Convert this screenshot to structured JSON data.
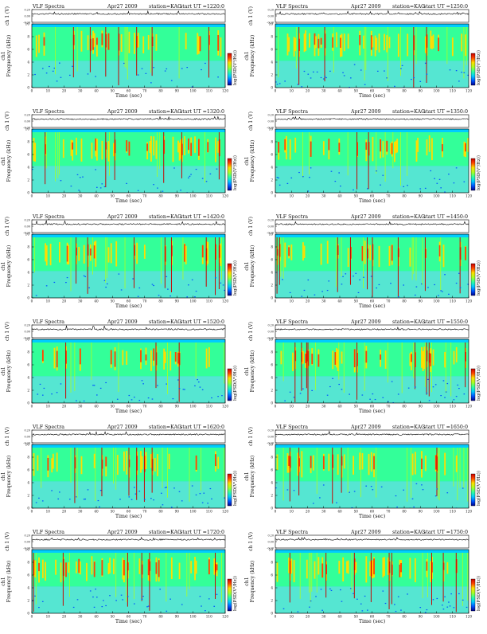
{
  "page": {
    "panel_title_left": "VLF Spectra",
    "date": "Apr27 2009",
    "station": "station=KAG",
    "ut_prefix": "start  UT  =",
    "ch_label": "ch 1 (V)",
    "freq_label": "Frequency (kHz)",
    "ch_rotated_label": "ch1",
    "time_label": "Time (sec)",
    "colorbar_label": "log(PSD(V²/Hz))",
    "colorbar_top_tick": "",
    "colorbar_bottom_tick": "-"
  },
  "chart_data": [
    {
      "type": "heatmap",
      "start_ut": "1220:0",
      "xlabel": "Time (sec)",
      "ylabel": "Frequency (kHz)",
      "xlim": [
        0,
        120
      ],
      "ylim": [
        0,
        10
      ],
      "xticks": [
        "0",
        "10",
        "20",
        "30",
        "40",
        "50",
        "60",
        "70",
        "80",
        "90",
        "100",
        "110",
        "120"
      ],
      "yticks": [
        "0",
        "2",
        "4",
        "6",
        "8",
        "10"
      ],
      "ch_ylim": [
        -0.2,
        0.2
      ],
      "ch_yticks": [
        "0.20",
        "0.00",
        "-0.20"
      ],
      "colormap": [
        "#00008b",
        "#0055ff",
        "#00ccff",
        "#33ff99",
        "#aaff22",
        "#ffdd00",
        "#ff4400",
        "#c80000"
      ],
      "band_upper_edge_khz": 9.5
    },
    {
      "type": "heatmap",
      "start_ut": "1250:0",
      "xlabel": "Time (sec)",
      "ylabel": "Frequency (kHz)",
      "xlim": [
        0,
        120
      ],
      "ylim": [
        0,
        10
      ],
      "xticks": [
        "0",
        "10",
        "20",
        "30",
        "40",
        "50",
        "60",
        "70",
        "80",
        "90",
        "100",
        "110",
        "120"
      ],
      "yticks": [
        "0",
        "2",
        "4",
        "6",
        "8",
        "10"
      ],
      "ch_ylim": [
        -0.2,
        0.2
      ],
      "ch_yticks": [
        "0.20",
        "0.00",
        "-0.20"
      ],
      "colormap": [
        "#00008b",
        "#0055ff",
        "#00ccff",
        "#33ff99",
        "#aaff22",
        "#ffdd00",
        "#ff4400",
        "#c80000"
      ],
      "band_upper_edge_khz": 9.5
    },
    {
      "type": "heatmap",
      "start_ut": "1320:0",
      "xlabel": "Time (sec)",
      "ylabel": "Frequency (kHz)",
      "xlim": [
        0,
        120
      ],
      "ylim": [
        0,
        10
      ],
      "xticks": [
        "0",
        "10",
        "20",
        "30",
        "40",
        "50",
        "60",
        "70",
        "80",
        "90",
        "100",
        "110",
        "120"
      ],
      "yticks": [
        "0",
        "2",
        "4",
        "6",
        "8",
        "10"
      ],
      "ch_ylim": [
        -0.2,
        0.2
      ],
      "ch_yticks": [
        "0.20",
        "0.00",
        "-0.20"
      ],
      "colormap": [
        "#00008b",
        "#0055ff",
        "#00ccff",
        "#33ff99",
        "#aaff22",
        "#ffdd00",
        "#ff4400",
        "#c80000"
      ],
      "band_upper_edge_khz": 9.5
    },
    {
      "type": "heatmap",
      "start_ut": "1350:0",
      "xlabel": "Time (sec)",
      "ylabel": "Frequency (kHz)",
      "xlim": [
        0,
        120
      ],
      "ylim": [
        0,
        10
      ],
      "xticks": [
        "0",
        "10",
        "20",
        "30",
        "40",
        "50",
        "60",
        "70",
        "80",
        "90",
        "100",
        "110",
        "120"
      ],
      "yticks": [
        "0",
        "2",
        "4",
        "6",
        "8",
        "10"
      ],
      "ch_ylim": [
        -0.2,
        0.2
      ],
      "ch_yticks": [
        "0.20",
        "0.00",
        "-0.20"
      ],
      "colormap": [
        "#00008b",
        "#0055ff",
        "#00ccff",
        "#33ff99",
        "#aaff22",
        "#ffdd00",
        "#ff4400",
        "#c80000"
      ],
      "band_upper_edge_khz": 9.5
    },
    {
      "type": "heatmap",
      "start_ut": "1420:0",
      "xlabel": "Time (sec)",
      "ylabel": "Frequency (kHz)",
      "xlim": [
        0,
        120
      ],
      "ylim": [
        0,
        10
      ],
      "xticks": [
        "0",
        "10",
        "20",
        "30",
        "40",
        "50",
        "60",
        "70",
        "80",
        "90",
        "100",
        "110",
        "120"
      ],
      "yticks": [
        "0",
        "2",
        "4",
        "6",
        "8",
        "10"
      ],
      "ch_ylim": [
        -0.2,
        0.2
      ],
      "ch_yticks": [
        "0.20",
        "0.00",
        "-0.20"
      ],
      "colormap": [
        "#00008b",
        "#0055ff",
        "#00ccff",
        "#33ff99",
        "#aaff22",
        "#ffdd00",
        "#ff4400",
        "#c80000"
      ],
      "band_upper_edge_khz": 9.5
    },
    {
      "type": "heatmap",
      "start_ut": "1450:0",
      "xlabel": "Time (sec)",
      "ylabel": "Frequency (kHz)",
      "xlim": [
        0,
        120
      ],
      "ylim": [
        0,
        10
      ],
      "xticks": [
        "0",
        "10",
        "20",
        "30",
        "40",
        "50",
        "60",
        "70",
        "80",
        "90",
        "100",
        "110",
        "120"
      ],
      "yticks": [
        "0",
        "2",
        "4",
        "6",
        "8",
        "10"
      ],
      "ch_ylim": [
        -0.2,
        0.2
      ],
      "ch_yticks": [
        "0.20",
        "0.00",
        "-0.20"
      ],
      "colormap": [
        "#00008b",
        "#0055ff",
        "#00ccff",
        "#33ff99",
        "#aaff22",
        "#ffdd00",
        "#ff4400",
        "#c80000"
      ],
      "band_upper_edge_khz": 9.5
    },
    {
      "type": "heatmap",
      "start_ut": "1520:0",
      "xlabel": "Time (sec)",
      "ylabel": "Frequency (kHz)",
      "xlim": [
        0,
        120
      ],
      "ylim": [
        0,
        10
      ],
      "xticks": [
        "0",
        "10",
        "20",
        "30",
        "40",
        "50",
        "60",
        "70",
        "80",
        "90",
        "100",
        "110",
        "120"
      ],
      "yticks": [
        "0",
        "2",
        "4",
        "6",
        "8",
        "10"
      ],
      "ch_ylim": [
        -0.2,
        0.2
      ],
      "ch_yticks": [
        "0.20",
        "0.00",
        "-0.20"
      ],
      "colormap": [
        "#00008b",
        "#0055ff",
        "#00ccff",
        "#33ff99",
        "#aaff22",
        "#ffdd00",
        "#ff4400",
        "#c80000"
      ],
      "band_upper_edge_khz": 9.5
    },
    {
      "type": "heatmap",
      "start_ut": "1550:0",
      "xlabel": "Time (sec)",
      "ylabel": "Frequency (kHz)",
      "xlim": [
        0,
        120
      ],
      "ylim": [
        0,
        10
      ],
      "xticks": [
        "0",
        "10",
        "20",
        "30",
        "40",
        "50",
        "60",
        "70",
        "80",
        "90",
        "100",
        "110",
        "120"
      ],
      "yticks": [
        "0",
        "2",
        "4",
        "6",
        "8",
        "10"
      ],
      "ch_ylim": [
        -0.2,
        0.2
      ],
      "ch_yticks": [
        "0.20",
        "0.00",
        "-0.20"
      ],
      "colormap": [
        "#00008b",
        "#0055ff",
        "#00ccff",
        "#33ff99",
        "#aaff22",
        "#ffdd00",
        "#ff4400",
        "#c80000"
      ],
      "band_upper_edge_khz": 9.5
    },
    {
      "type": "heatmap",
      "start_ut": "1620:0",
      "xlabel": "Time (sec)",
      "ylabel": "Frequency (kHz)",
      "xlim": [
        0,
        120
      ],
      "ylim": [
        0,
        10
      ],
      "xticks": [
        "0",
        "10",
        "20",
        "30",
        "40",
        "50",
        "60",
        "70",
        "80",
        "90",
        "100",
        "110",
        "120"
      ],
      "yticks": [
        "0",
        "2",
        "4",
        "6",
        "8",
        "10"
      ],
      "ch_ylim": [
        -0.2,
        0.2
      ],
      "ch_yticks": [
        "0.20",
        "0.00",
        "-0.20"
      ],
      "colormap": [
        "#00008b",
        "#0055ff",
        "#00ccff",
        "#33ff99",
        "#aaff22",
        "#ffdd00",
        "#ff4400",
        "#c80000"
      ],
      "band_upper_edge_khz": 9.5
    },
    {
      "type": "heatmap",
      "start_ut": "1650:0",
      "xlabel": "Time (sec)",
      "ylabel": "Frequency (kHz)",
      "xlim": [
        0,
        120
      ],
      "ylim": [
        0,
        10
      ],
      "xticks": [
        "0",
        "10",
        "20",
        "30",
        "40",
        "50",
        "60",
        "70",
        "80",
        "90",
        "100",
        "110",
        "120"
      ],
      "yticks": [
        "0",
        "2",
        "4",
        "6",
        "8",
        "10"
      ],
      "ch_ylim": [
        -0.2,
        0.2
      ],
      "ch_yticks": [
        "0.20",
        "0.00",
        "-0.20"
      ],
      "colormap": [
        "#00008b",
        "#0055ff",
        "#00ccff",
        "#33ff99",
        "#aaff22",
        "#ffdd00",
        "#ff4400",
        "#c80000"
      ],
      "band_upper_edge_khz": 9.5
    },
    {
      "type": "heatmap",
      "start_ut": "1720:0",
      "xlabel": "Time (sec)",
      "ylabel": "Frequency (kHz)",
      "xlim": [
        0,
        120
      ],
      "ylim": [
        0,
        10
      ],
      "xticks": [
        "0",
        "10",
        "20",
        "30",
        "40",
        "50",
        "60",
        "70",
        "80",
        "90",
        "100",
        "110",
        "120"
      ],
      "yticks": [
        "0",
        "2",
        "4",
        "6",
        "8",
        "10"
      ],
      "ch_ylim": [
        -0.2,
        0.2
      ],
      "ch_yticks": [
        "0.20",
        "0.00",
        "-0.20"
      ],
      "colormap": [
        "#00008b",
        "#0055ff",
        "#00ccff",
        "#33ff99",
        "#aaff22",
        "#ffdd00",
        "#ff4400",
        "#c80000"
      ],
      "band_upper_edge_khz": 9.5
    },
    {
      "type": "heatmap",
      "start_ut": "1750:0",
      "xlabel": "Time (sec)",
      "ylabel": "Frequency (kHz)",
      "xlim": [
        0,
        120
      ],
      "ylim": [
        0,
        10
      ],
      "xticks": [
        "0",
        "10",
        "20",
        "30",
        "40",
        "50",
        "60",
        "70",
        "80",
        "90",
        "100",
        "110",
        "120"
      ],
      "yticks": [
        "0",
        "2",
        "4",
        "6",
        "8",
        "10"
      ],
      "ch_ylim": [
        -0.2,
        0.2
      ],
      "ch_yticks": [
        "0.20",
        "0.00",
        "-0.20"
      ],
      "colormap": [
        "#00008b",
        "#0055ff",
        "#00ccff",
        "#33ff99",
        "#aaff22",
        "#ffdd00",
        "#ff4400",
        "#c80000"
      ],
      "band_upper_edge_khz": 9.5
    }
  ]
}
